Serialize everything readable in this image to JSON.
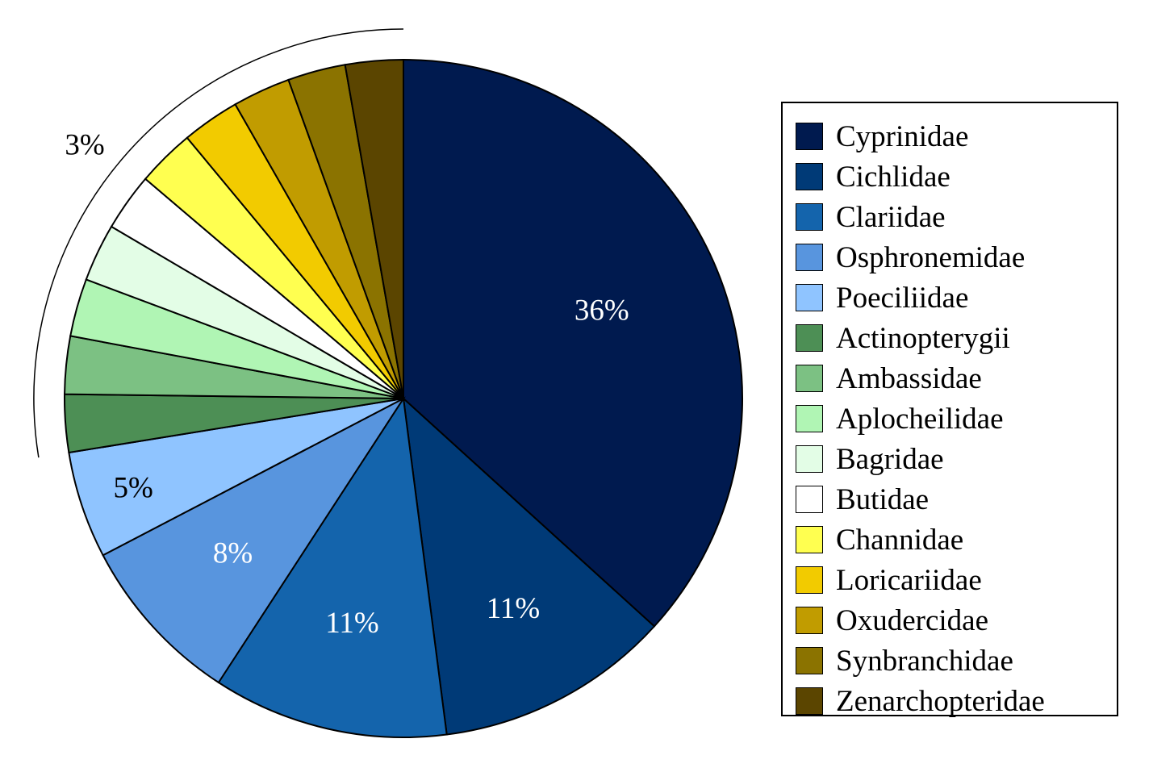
{
  "chart_data": {
    "type": "pie",
    "title": "",
    "slices": [
      {
        "label": "Cyprinidae",
        "value": 36,
        "color": "#001a4f",
        "data_label": "36%",
        "label_color": "#ffffff"
      },
      {
        "label": "Cichlidae",
        "value": 11,
        "color": "#003a77",
        "data_label": "11%",
        "label_color": "#ffffff"
      },
      {
        "label": "Clariidae",
        "value": 11,
        "color": "#1464ac",
        "data_label": "11%",
        "label_color": "#ffffff"
      },
      {
        "label": "Osphronemidae",
        "value": 8,
        "color": "#5895de",
        "data_label": "8%",
        "label_color": "#ffffff"
      },
      {
        "label": "Poeciliidae",
        "value": 5,
        "color": "#8fc4ff",
        "data_label": "5%",
        "label_color": "#000000"
      },
      {
        "label": "Actinopterygii",
        "value": 2.7,
        "color": "#4d8f55",
        "data_label": "",
        "label_color": "#000000"
      },
      {
        "label": "Ambassidae",
        "value": 2.7,
        "color": "#7cc183",
        "data_label": "",
        "label_color": "#000000"
      },
      {
        "label": "Aplocheilidae",
        "value": 2.7,
        "color": "#b0f5b4",
        "data_label": "",
        "label_color": "#000000"
      },
      {
        "label": "Bagridae",
        "value": 2.7,
        "color": "#e3fde6",
        "data_label": "",
        "label_color": "#000000"
      },
      {
        "label": "Butidae",
        "value": 2.7,
        "color": "#ffffff",
        "data_label": "",
        "label_color": "#000000"
      },
      {
        "label": "Channidae",
        "value": 2.7,
        "color": "#ffff50",
        "data_label": "",
        "label_color": "#000000"
      },
      {
        "label": "Loricariidae",
        "value": 2.7,
        "color": "#f2cb00",
        "data_label": "",
        "label_color": "#000000"
      },
      {
        "label": "Oxudercidae",
        "value": 2.7,
        "color": "#c19c00",
        "data_label": "",
        "label_color": "#000000"
      },
      {
        "label": "Synbranchidae",
        "value": 2.7,
        "color": "#8b7300",
        "data_label": "",
        "label_color": "#000000"
      },
      {
        "label": "Zenarchopteridae",
        "value": 2.7,
        "color": "#5b4500",
        "data_label": "",
        "label_color": "#000000"
      }
    ],
    "group_annotation": {
      "text": "3%",
      "covers": [
        "Actinopterygii",
        "Ambassidae",
        "Aplocheilidae",
        "Bagridae",
        "Butidae",
        "Channidae",
        "Loricariidae",
        "Oxudercidae",
        "Synbranchidae",
        "Zenarchopteridae"
      ]
    },
    "start": "top",
    "direction": "clockwise",
    "legend_position": "right"
  }
}
